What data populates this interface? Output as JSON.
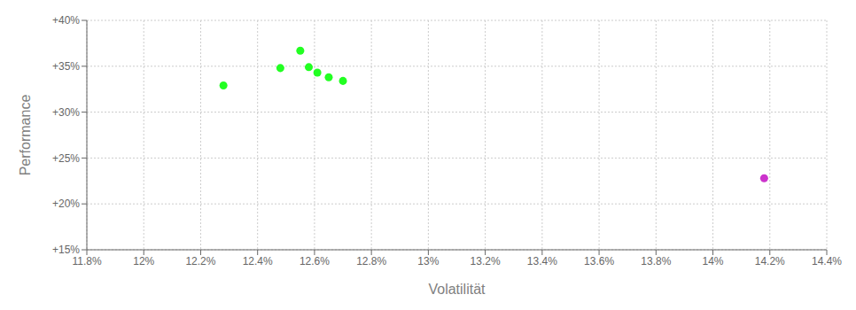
{
  "chart_data": {
    "type": "scatter",
    "xlabel": "Volatilität",
    "ylabel": "Performance",
    "xlim": [
      0.118,
      0.144
    ],
    "ylim": [
      0.15,
      0.4
    ],
    "xticks": [
      {
        "value": 0.118,
        "label": "11.8%"
      },
      {
        "value": 0.12,
        "label": "12%"
      },
      {
        "value": 0.122,
        "label": "12.2%"
      },
      {
        "value": 0.124,
        "label": "12.4%"
      },
      {
        "value": 0.126,
        "label": "12.6%"
      },
      {
        "value": 0.128,
        "label": "12.8%"
      },
      {
        "value": 0.13,
        "label": "13%"
      },
      {
        "value": 0.132,
        "label": "13.2%"
      },
      {
        "value": 0.134,
        "label": "13.4%"
      },
      {
        "value": 0.136,
        "label": "13.6%"
      },
      {
        "value": 0.138,
        "label": "13.8%"
      },
      {
        "value": 0.14,
        "label": "14%"
      },
      {
        "value": 0.142,
        "label": "14.2%"
      },
      {
        "value": 0.144,
        "label": "14.4%"
      }
    ],
    "yticks": [
      {
        "value": 0.15,
        "label": "+15%"
      },
      {
        "value": 0.2,
        "label": "+20%"
      },
      {
        "value": 0.25,
        "label": "+25%"
      },
      {
        "value": 0.3,
        "label": "+30%"
      },
      {
        "value": 0.35,
        "label": "+35%"
      },
      {
        "value": 0.4,
        "label": "+40%"
      }
    ],
    "grid": true,
    "series": [
      {
        "color": "#22ff22",
        "x": [
          0.1228,
          0.1248,
          0.1255,
          0.1258,
          0.1261,
          0.1265,
          0.127
        ],
        "values": [
          0.329,
          0.348,
          0.367,
          0.349,
          0.343,
          0.338,
          0.334
        ]
      },
      {
        "color": "#cc33cc",
        "x": [
          0.1418
        ],
        "values": [
          0.228
        ]
      }
    ]
  }
}
